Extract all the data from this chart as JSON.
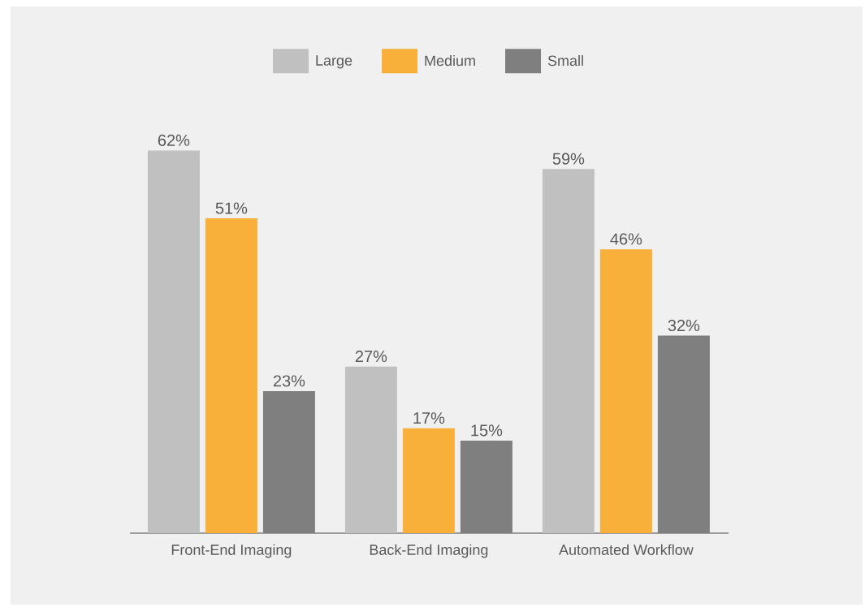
{
  "chart_data": {
    "type": "bar",
    "categories": [
      "Front-End Imaging",
      "Back-End Imaging",
      "Automated Workflow"
    ],
    "series": [
      {
        "name": "Large",
        "color": "#c0c0c0",
        "values": [
          62,
          27,
          59
        ],
        "value_labels": [
          "62%",
          "27%",
          "59%"
        ]
      },
      {
        "name": "Medium",
        "color": "#f9b03b",
        "values": [
          51,
          17,
          46
        ],
        "value_labels": [
          "51%",
          "17%",
          "46%"
        ]
      },
      {
        "name": "Small",
        "color": "#7f7f80",
        "values": [
          23,
          15,
          32
        ],
        "value_labels": [
          "23%",
          "15%",
          "32%"
        ]
      }
    ],
    "legend": "top"
  }
}
